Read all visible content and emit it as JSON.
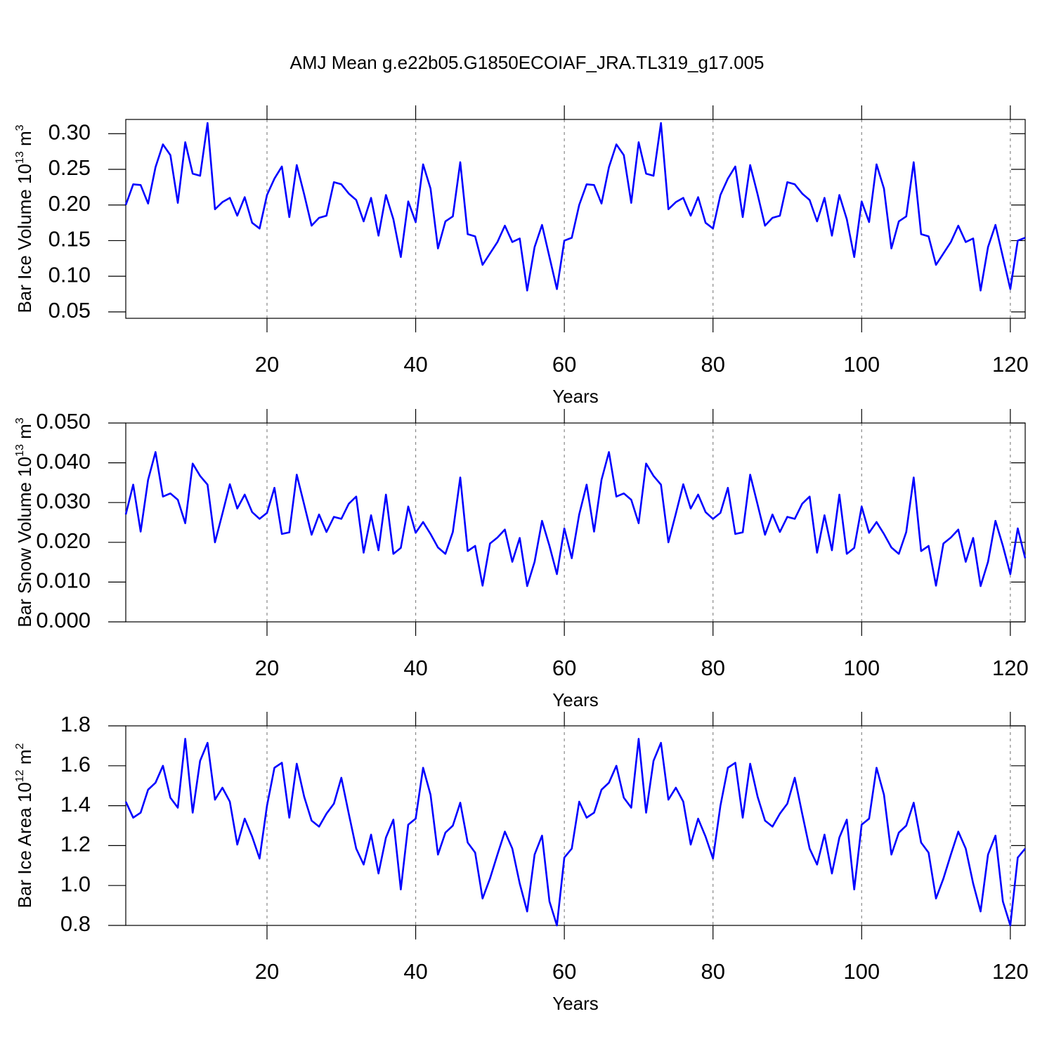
{
  "chart_data": [
    {
      "type": "line",
      "title": "AMJ Mean g.e22b05.G1850ECOIAF_JRA.TL319_g17.005",
      "xlabel": "Years",
      "ylabel": [
        "Bar Ice Volume 10",
        "13",
        " m",
        "3"
      ],
      "xlim": [
        1,
        122
      ],
      "xticks": [
        20,
        40,
        60,
        80,
        100,
        120
      ],
      "xgrid": true,
      "ylim": [
        0.041,
        0.32
      ],
      "yticks": [
        0.05,
        {
          "value": 0.1,
          "label": "0.10"
        },
        0.15,
        {
          "value": 0.2,
          "label": "0.20"
        },
        0.25,
        {
          "value": 0.3,
          "label": "0.30"
        }
      ],
      "x": [
        1,
        2,
        3,
        4,
        5,
        6,
        7,
        8,
        9,
        10,
        11,
        12,
        13,
        14,
        15,
        16,
        17,
        18,
        19,
        20,
        21,
        22,
        23,
        24,
        25,
        26,
        27,
        28,
        29,
        30,
        31,
        32,
        33,
        34,
        35,
        36,
        37,
        38,
        39,
        40,
        41,
        42,
        43,
        44,
        45,
        46,
        47,
        48,
        49,
        50,
        51,
        52,
        53,
        54,
        55,
        56,
        57,
        58,
        59,
        60,
        61,
        62,
        63,
        64,
        65,
        66,
        67,
        68,
        69,
        70,
        71,
        72,
        73,
        74,
        75,
        76,
        77,
        78,
        79,
        80,
        81,
        82,
        83,
        84,
        85,
        86,
        87,
        88,
        89,
        90,
        91,
        92,
        93,
        94,
        95,
        96,
        97,
        98,
        99,
        100,
        101,
        102,
        103,
        104,
        105,
        106,
        107,
        108,
        109,
        110,
        111,
        112,
        113,
        114,
        115,
        116,
        117,
        118,
        119,
        120,
        121,
        122
      ],
      "series": [
        {
          "color": "#0000ff",
          "values": [
            0.2,
            0.229,
            0.228,
            0.202,
            0.253,
            0.285,
            0.27,
            0.203,
            0.288,
            0.244,
            0.241,
            0.315,
            0.194,
            0.204,
            0.21,
            0.185,
            0.211,
            0.175,
            0.167,
            0.214,
            0.237,
            0.254,
            0.183,
            0.256,
            0.215,
            0.171,
            0.182,
            0.185,
            0.232,
            0.229,
            0.216,
            0.207,
            0.177,
            0.21,
            0.157,
            0.214,
            0.18,
            0.127,
            0.205,
            0.176,
            0.257,
            0.223,
            0.139,
            0.177,
            0.184,
            0.26,
            0.159,
            0.156,
            0.116,
            0.132,
            0.148,
            0.171,
            0.148,
            0.153,
            0.08,
            0.141,
            0.172,
            0.127,
            0.082,
            0.15,
            0.154,
            0.2,
            0.229,
            0.228,
            0.202,
            0.253,
            0.285,
            0.27,
            0.203,
            0.288,
            0.244,
            0.241,
            0.315,
            0.194,
            0.204,
            0.21,
            0.185,
            0.211,
            0.175,
            0.167,
            0.214,
            0.237,
            0.254,
            0.183,
            0.256,
            0.215,
            0.171,
            0.182,
            0.185,
            0.232,
            0.229,
            0.216,
            0.207,
            0.177,
            0.21,
            0.157,
            0.214,
            0.18,
            0.127,
            0.205,
            0.176,
            0.257,
            0.223,
            0.139,
            0.177,
            0.184,
            0.26,
            0.159,
            0.156,
            0.116,
            0.132,
            0.148,
            0.171,
            0.148,
            0.153,
            0.08,
            0.141,
            0.172,
            0.127,
            0.082,
            0.15,
            0.154
          ]
        }
      ]
    },
    {
      "type": "line",
      "xlabel": "Years",
      "ylabel": [
        "Bar Snow Volume 10",
        "13",
        " m",
        "3"
      ],
      "xlim": [
        1,
        122
      ],
      "xticks": [
        20,
        40,
        60,
        80,
        100,
        120
      ],
      "xgrid": true,
      "ylim": [
        0,
        0.05
      ],
      "yticks": [
        {
          "value": 0,
          "label": "0.000"
        },
        {
          "value": 0.01,
          "label": "0.010"
        },
        {
          "value": 0.02,
          "label": "0.020"
        },
        {
          "value": 0.03,
          "label": "0.030"
        },
        {
          "value": 0.04,
          "label": "0.040"
        },
        {
          "value": 0.05,
          "label": "0.050"
        }
      ],
      "x": [
        1,
        2,
        3,
        4,
        5,
        6,
        7,
        8,
        9,
        10,
        11,
        12,
        13,
        14,
        15,
        16,
        17,
        18,
        19,
        20,
        21,
        22,
        23,
        24,
        25,
        26,
        27,
        28,
        29,
        30,
        31,
        32,
        33,
        34,
        35,
        36,
        37,
        38,
        39,
        40,
        41,
        42,
        43,
        44,
        45,
        46,
        47,
        48,
        49,
        50,
        51,
        52,
        53,
        54,
        55,
        56,
        57,
        58,
        59,
        60,
        61,
        62,
        63,
        64,
        65,
        66,
        67,
        68,
        69,
        70,
        71,
        72,
        73,
        74,
        75,
        76,
        77,
        78,
        79,
        80,
        81,
        82,
        83,
        84,
        85,
        86,
        87,
        88,
        89,
        90,
        91,
        92,
        93,
        94,
        95,
        96,
        97,
        98,
        99,
        100,
        101,
        102,
        103,
        104,
        105,
        106,
        107,
        108,
        109,
        110,
        111,
        112,
        113,
        114,
        115,
        116,
        117,
        118,
        119,
        120,
        121,
        122
      ],
      "series": [
        {
          "color": "#0000ff",
          "values": [
            0.027,
            0.0345,
            0.0227,
            0.0357,
            0.0427,
            0.0315,
            0.0323,
            0.0307,
            0.0248,
            0.0398,
            0.0367,
            0.0345,
            0.02,
            0.0272,
            0.0346,
            0.0285,
            0.032,
            0.0276,
            0.0259,
            0.0274,
            0.0337,
            0.0221,
            0.0225,
            0.037,
            0.0295,
            0.0219,
            0.027,
            0.0226,
            0.0264,
            0.0259,
            0.0297,
            0.0315,
            0.0174,
            0.0268,
            0.018,
            0.032,
            0.0171,
            0.0186,
            0.029,
            0.0224,
            0.0251,
            0.0221,
            0.0187,
            0.0171,
            0.0226,
            0.0363,
            0.0178,
            0.0191,
            0.0091,
            0.0197,
            0.0212,
            0.0232,
            0.0151,
            0.0211,
            0.009,
            0.0151,
            0.0254,
            0.0191,
            0.012,
            0.0235,
            0.016,
            0.027,
            0.0345,
            0.0227,
            0.0357,
            0.0427,
            0.0315,
            0.0323,
            0.0307,
            0.0248,
            0.0398,
            0.0367,
            0.0345,
            0.02,
            0.0272,
            0.0346,
            0.0285,
            0.032,
            0.0276,
            0.0259,
            0.0274,
            0.0337,
            0.0221,
            0.0225,
            0.037,
            0.0295,
            0.0219,
            0.027,
            0.0226,
            0.0264,
            0.0259,
            0.0297,
            0.0315,
            0.0174,
            0.0268,
            0.018,
            0.032,
            0.0171,
            0.0186,
            0.029,
            0.0224,
            0.0251,
            0.0221,
            0.0187,
            0.0171,
            0.0226,
            0.0363,
            0.0178,
            0.0191,
            0.0091,
            0.0197,
            0.0212,
            0.0232,
            0.0151,
            0.0211,
            0.009,
            0.0151,
            0.0254,
            0.0191,
            0.012,
            0.0235,
            0.016
          ]
        }
      ]
    },
    {
      "type": "line",
      "xlabel": "Years",
      "ylabel": [
        "Bar Ice Area 10",
        "12",
        " m",
        "2"
      ],
      "xlim": [
        1,
        122
      ],
      "xticks": [
        20,
        40,
        60,
        80,
        100,
        120
      ],
      "xgrid": true,
      "ylim": [
        0.8,
        1.8
      ],
      "yticks": [
        0.8,
        {
          "value": 1,
          "label": "1.0"
        },
        1.2,
        1.4,
        1.6,
        1.8
      ],
      "x": [
        1,
        2,
        3,
        4,
        5,
        6,
        7,
        8,
        9,
        10,
        11,
        12,
        13,
        14,
        15,
        16,
        17,
        18,
        19,
        20,
        21,
        22,
        23,
        24,
        25,
        26,
        27,
        28,
        29,
        30,
        31,
        32,
        33,
        34,
        35,
        36,
        37,
        38,
        39,
        40,
        41,
        42,
        43,
        44,
        45,
        46,
        47,
        48,
        49,
        50,
        51,
        52,
        53,
        54,
        55,
        56,
        57,
        58,
        59,
        60,
        61,
        62,
        63,
        64,
        65,
        66,
        67,
        68,
        69,
        70,
        71,
        72,
        73,
        74,
        75,
        76,
        77,
        78,
        79,
        80,
        81,
        82,
        83,
        84,
        85,
        86,
        87,
        88,
        89,
        90,
        91,
        92,
        93,
        94,
        95,
        96,
        97,
        98,
        99,
        100,
        101,
        102,
        103,
        104,
        105,
        106,
        107,
        108,
        109,
        110,
        111,
        112,
        113,
        114,
        115,
        116,
        117,
        118,
        119,
        120,
        121,
        122
      ],
      "series": [
        {
          "color": "#0000ff",
          "values": [
            1.42,
            1.34,
            1.365,
            1.48,
            1.515,
            1.6,
            1.44,
            1.39,
            1.735,
            1.365,
            1.625,
            1.715,
            1.43,
            1.49,
            1.42,
            1.205,
            1.335,
            1.245,
            1.135,
            1.4,
            1.59,
            1.615,
            1.34,
            1.61,
            1.445,
            1.325,
            1.295,
            1.36,
            1.41,
            1.54,
            1.36,
            1.185,
            1.105,
            1.255,
            1.06,
            1.24,
            1.33,
            0.98,
            1.305,
            1.335,
            1.59,
            1.455,
            1.155,
            1.265,
            1.3,
            1.415,
            1.215,
            1.165,
            0.935,
            1.035,
            1.155,
            1.27,
            1.185,
            1.01,
            0.87,
            1.155,
            1.25,
            0.92,
            0.8,
            1.14,
            1.185,
            1.42,
            1.34,
            1.365,
            1.48,
            1.515,
            1.6,
            1.44,
            1.39,
            1.735,
            1.365,
            1.625,
            1.715,
            1.43,
            1.49,
            1.42,
            1.205,
            1.335,
            1.245,
            1.135,
            1.4,
            1.59,
            1.615,
            1.34,
            1.61,
            1.445,
            1.325,
            1.295,
            1.36,
            1.41,
            1.54,
            1.36,
            1.185,
            1.105,
            1.255,
            1.06,
            1.24,
            1.33,
            0.98,
            1.305,
            1.335,
            1.59,
            1.455,
            1.155,
            1.265,
            1.3,
            1.415,
            1.215,
            1.165,
            0.935,
            1.035,
            1.155,
            1.27,
            1.185,
            1.01,
            0.87,
            1.155,
            1.25,
            0.92,
            0.8,
            1.14,
            1.185
          ]
        }
      ]
    }
  ]
}
